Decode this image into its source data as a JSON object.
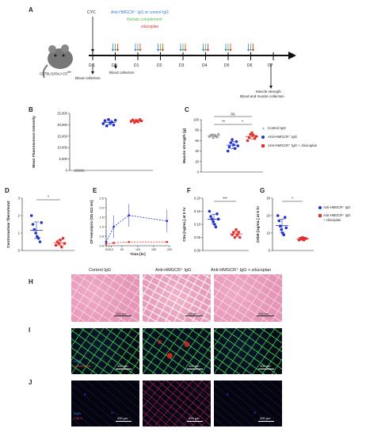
{
  "panel_labels": {
    "a": "A",
    "b": "B",
    "c": "C",
    "d": "D",
    "e": "E",
    "f": "F",
    "g": "G",
    "h": "H",
    "i": "I",
    "j": "J"
  },
  "timeline": {
    "cyc_label": "CYC",
    "treatment_line1": "Anti-HMGCR⁺ IgG or control IgG",
    "treatment_line2": "Human complement",
    "treatment_line3": "zilucoplan",
    "days": [
      "D-1",
      "D0",
      "D1",
      "D2",
      "D3",
      "D4",
      "D5",
      "D6",
      "D7"
    ],
    "mouse_strain": "C57BL/10SnJ C5",
    "mouse_strain_sup": "def",
    "blood_collection_1": "Blood collection",
    "blood_collection_2": "Blood collection",
    "muscle_line1": "Muscle strength",
    "muscle_line2": "Blood and muscle collection",
    "colors": {
      "blue": "#3b7fd9",
      "green": "#52b94a",
      "red": "#e0302b"
    }
  },
  "legend": {
    "control": "Control IgG",
    "anti": "Anti-HMGCR⁺ IgG",
    "anti_zil": "Anti-HMGCR⁺ IgG + zilucoplan",
    "fg_anti": "Anti-HMGCR⁺ IgG",
    "fg_anti_zil_1": "Anti-HMGCR⁺ IgG",
    "fg_anti_zil_2": "+ zilucoplan"
  },
  "histology": {
    "col1": "Control IgG",
    "col2": "Anti-HMGCR⁺ IgG",
    "col3": "Anti-HMGCR⁺ IgG + zilucoplan",
    "scale_100": "100 μm",
    "scale_200": "200 μm",
    "stain_dapi": "DAPI",
    "stain_i_red": "Laminin/Igm",
    "stain_j_red": "C5b-9"
  },
  "chart_data": [
    {
      "panel": "B",
      "type": "scatter",
      "title": "",
      "ylabel": "Mean Fluorescence Intensity",
      "ylim": [
        0,
        25000
      ],
      "yticks": [
        "0",
        "5,000",
        "10,000",
        "15,000",
        "20,000",
        "25,000"
      ],
      "series": [
        {
          "name": "Control IgG",
          "values": [
            0,
            0,
            0,
            0,
            0,
            0,
            0,
            0
          ]
        },
        {
          "name": "Anti-HMGCR⁺ IgG",
          "values": [
            20500,
            21800,
            19500,
            22300,
            20800,
            21200,
            19900,
            22000
          ]
        },
        {
          "name": "Anti-HMGCR⁺ IgG + zilucoplan",
          "values": [
            21500,
            22100,
            21000,
            21900,
            21300,
            22300,
            21700
          ]
        }
      ]
    },
    {
      "panel": "C",
      "type": "scatter",
      "title": "",
      "ylabel": "Muscle strength (g)",
      "ylim": [
        0,
        100
      ],
      "yticks": [
        "0",
        "20",
        "40",
        "60",
        "80",
        "100"
      ],
      "significance": [
        "**",
        "*",
        "ns"
      ],
      "series": [
        {
          "name": "Control IgG",
          "values": [
            68,
            70,
            72,
            66,
            71,
            69,
            67,
            73
          ]
        },
        {
          "name": "Anti-HMGCR⁺ IgG",
          "values": [
            40,
            48,
            56,
            62,
            52,
            45,
            58,
            50
          ]
        },
        {
          "name": "Anti-HMGCR⁺ IgG + zilucoplan",
          "values": [
            60,
            66,
            72,
            75,
            70,
            64,
            68
          ]
        }
      ]
    },
    {
      "panel": "D",
      "type": "scatter",
      "title": "",
      "ylabel": "Centronuclear fibers/mm2",
      "ylim": [
        0,
        3
      ],
      "yticks": [
        "0",
        "1",
        "2",
        "3"
      ],
      "significance": [
        "*"
      ],
      "series": [
        {
          "name": "Anti-HMGCR⁺ IgG",
          "values": [
            2.0,
            1.5,
            1.2,
            1.0,
            0.8,
            0.7,
            0.5,
            1.6
          ]
        },
        {
          "name": "Anti-HMGCR⁺ IgG + zilucoplan",
          "values": [
            0.3,
            0.5,
            0.4,
            0.6,
            0.2,
            0.7,
            0.4
          ]
        }
      ]
    },
    {
      "panel": "E",
      "type": "line",
      "title": "",
      "ylabel": "CP Hemolysis (OD 412 nm)",
      "xlabel": "Time [hr]",
      "ylim": [
        0,
        2.5
      ],
      "yticks": [
        "0.0",
        "0.5",
        "1.0",
        "1.5",
        "2.0",
        "2.5"
      ],
      "xticks": [
        "0",
        "0.5",
        "1.0",
        "50",
        "100",
        "150",
        "200"
      ],
      "series": [
        {
          "name": "Anti-HMGCR⁺ IgG",
          "x": [
            0,
            24,
            72,
            192
          ],
          "values": [
            0.2,
            1.0,
            1.6,
            1.3
          ]
        },
        {
          "name": "Anti-HMGCR⁺ IgG + zilucoplan",
          "x": [
            0,
            24,
            72,
            192
          ],
          "values": [
            0.1,
            0.15,
            0.2,
            0.2
          ]
        }
      ]
    },
    {
      "panel": "F",
      "type": "scatter",
      "title": "",
      "ylabel": "C5a [ng/mL] at 5 hr",
      "ylim": [
        0,
        0.2
      ],
      "yticks": [
        "0.00",
        "0.05",
        "0.10",
        "0.15",
        "0.20"
      ],
      "significance": [
        "***"
      ],
      "series": [
        {
          "name": "Anti-HMGCR⁺ IgG",
          "values": [
            0.15,
            0.13,
            0.12,
            0.11,
            0.1,
            0.09,
            0.14,
            0.12
          ]
        },
        {
          "name": "Anti-HMGCR⁺ IgG + zilucoplan",
          "values": [
            0.06,
            0.07,
            0.05,
            0.08,
            0.06,
            0.07,
            0.05
          ]
        }
      ]
    },
    {
      "panel": "G",
      "type": "scatter",
      "title": "",
      "ylabel": "C5b9 [ng/mL] at 5 hr",
      "ylim": [
        0,
        30
      ],
      "yticks": [
        "0",
        "10",
        "20",
        "30"
      ],
      "significance": [
        "*"
      ],
      "series": [
        {
          "name": "Anti-HMGCR⁺ IgG",
          "values": [
            20,
            17,
            14,
            12,
            10,
            9,
            19,
            13
          ]
        },
        {
          "name": "Anti-HMGCR⁺ IgG + zilucoplan",
          "values": [
            6,
            7,
            6.5,
            7.5,
            6,
            7,
            6.8
          ]
        }
      ]
    }
  ]
}
